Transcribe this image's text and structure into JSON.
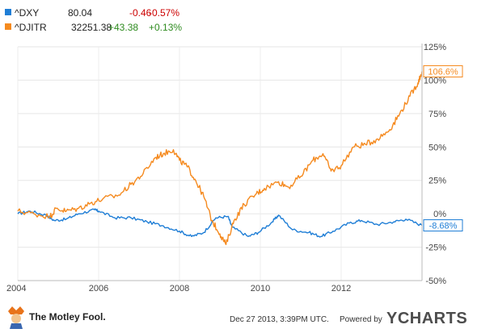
{
  "legend": [
    {
      "name": "^DXY",
      "value": "80.04",
      "change": "-0.46",
      "pct": "-0.57%",
      "color": "#1f7ed6",
      "dir": "neg"
    },
    {
      "name": "^DJITR",
      "value": "32251.38",
      "change": "+43.38",
      "pct": "+0.13%",
      "color": "#f58a1f",
      "dir": "pos"
    }
  ],
  "chart_data": {
    "type": "line",
    "x_ticks": [
      "2004",
      "2006",
      "2008",
      "2010",
      "2012"
    ],
    "y_ticks": [
      "125%",
      "100%",
      "75%",
      "50%",
      "25%",
      "0%",
      "-25%",
      "-50%"
    ],
    "ylim": [
      -50,
      125
    ],
    "xlim": [
      2004,
      2014
    ],
    "series": [
      {
        "name": "^DXY",
        "color": "#1f7ed6",
        "end_label": "-8.68%",
        "points": [
          [
            2004.0,
            0
          ],
          [
            2004.3,
            2
          ],
          [
            2004.7,
            -1
          ],
          [
            2004.9,
            -5
          ],
          [
            2005.2,
            -4
          ],
          [
            2005.5,
            0
          ],
          [
            2005.9,
            3
          ],
          [
            2006.0,
            2
          ],
          [
            2006.4,
            -3
          ],
          [
            2006.8,
            -3
          ],
          [
            2007.2,
            -6
          ],
          [
            2007.6,
            -9
          ],
          [
            2008.0,
            -13
          ],
          [
            2008.3,
            -17
          ],
          [
            2008.6,
            -14
          ],
          [
            2008.9,
            -3
          ],
          [
            2009.2,
            -2
          ],
          [
            2009.3,
            -10
          ],
          [
            2009.7,
            -17
          ],
          [
            2009.95,
            -14
          ],
          [
            2010.3,
            -6
          ],
          [
            2010.45,
            -1
          ],
          [
            2010.8,
            -12
          ],
          [
            2011.2,
            -14
          ],
          [
            2011.5,
            -17
          ],
          [
            2011.8,
            -13
          ],
          [
            2012.2,
            -7
          ],
          [
            2012.5,
            -5
          ],
          [
            2012.9,
            -8
          ],
          [
            2013.3,
            -6
          ],
          [
            2013.6,
            -4
          ],
          [
            2014.0,
            -8.68
          ]
        ]
      },
      {
        "name": "^DJITR",
        "color": "#f58a1f",
        "end_label": "106.6%",
        "points": [
          [
            2004.0,
            2
          ],
          [
            2004.4,
            0
          ],
          [
            2004.8,
            -2
          ],
          [
            2004.95,
            4
          ],
          [
            2005.2,
            2
          ],
          [
            2005.5,
            4
          ],
          [
            2005.8,
            8
          ],
          [
            2006.1,
            11
          ],
          [
            2006.5,
            14
          ],
          [
            2006.8,
            22
          ],
          [
            2007.1,
            30
          ],
          [
            2007.4,
            42
          ],
          [
            2007.6,
            45
          ],
          [
            2007.85,
            48
          ],
          [
            2008.0,
            40
          ],
          [
            2008.2,
            35
          ],
          [
            2008.4,
            25
          ],
          [
            2008.6,
            13
          ],
          [
            2008.8,
            -5
          ],
          [
            2009.0,
            -15
          ],
          [
            2009.15,
            -23
          ],
          [
            2009.35,
            -5
          ],
          [
            2009.6,
            7
          ],
          [
            2009.9,
            15
          ],
          [
            2010.1,
            19
          ],
          [
            2010.45,
            24
          ],
          [
            2010.7,
            20
          ],
          [
            2011.0,
            28
          ],
          [
            2011.3,
            40
          ],
          [
            2011.55,
            45
          ],
          [
            2011.75,
            32
          ],
          [
            2012.0,
            36
          ],
          [
            2012.3,
            50
          ],
          [
            2012.6,
            52
          ],
          [
            2012.9,
            56
          ],
          [
            2013.2,
            63
          ],
          [
            2013.45,
            75
          ],
          [
            2013.7,
            88
          ],
          [
            2013.9,
            98
          ],
          [
            2014.0,
            106.6
          ]
        ]
      }
    ]
  },
  "footer": {
    "logo_text": "The Motley Fool.",
    "timestamp": "Dec 27 2013, 3:39PM UTC.",
    "powered_by": "Powered by",
    "brand": "YCHARTS"
  }
}
